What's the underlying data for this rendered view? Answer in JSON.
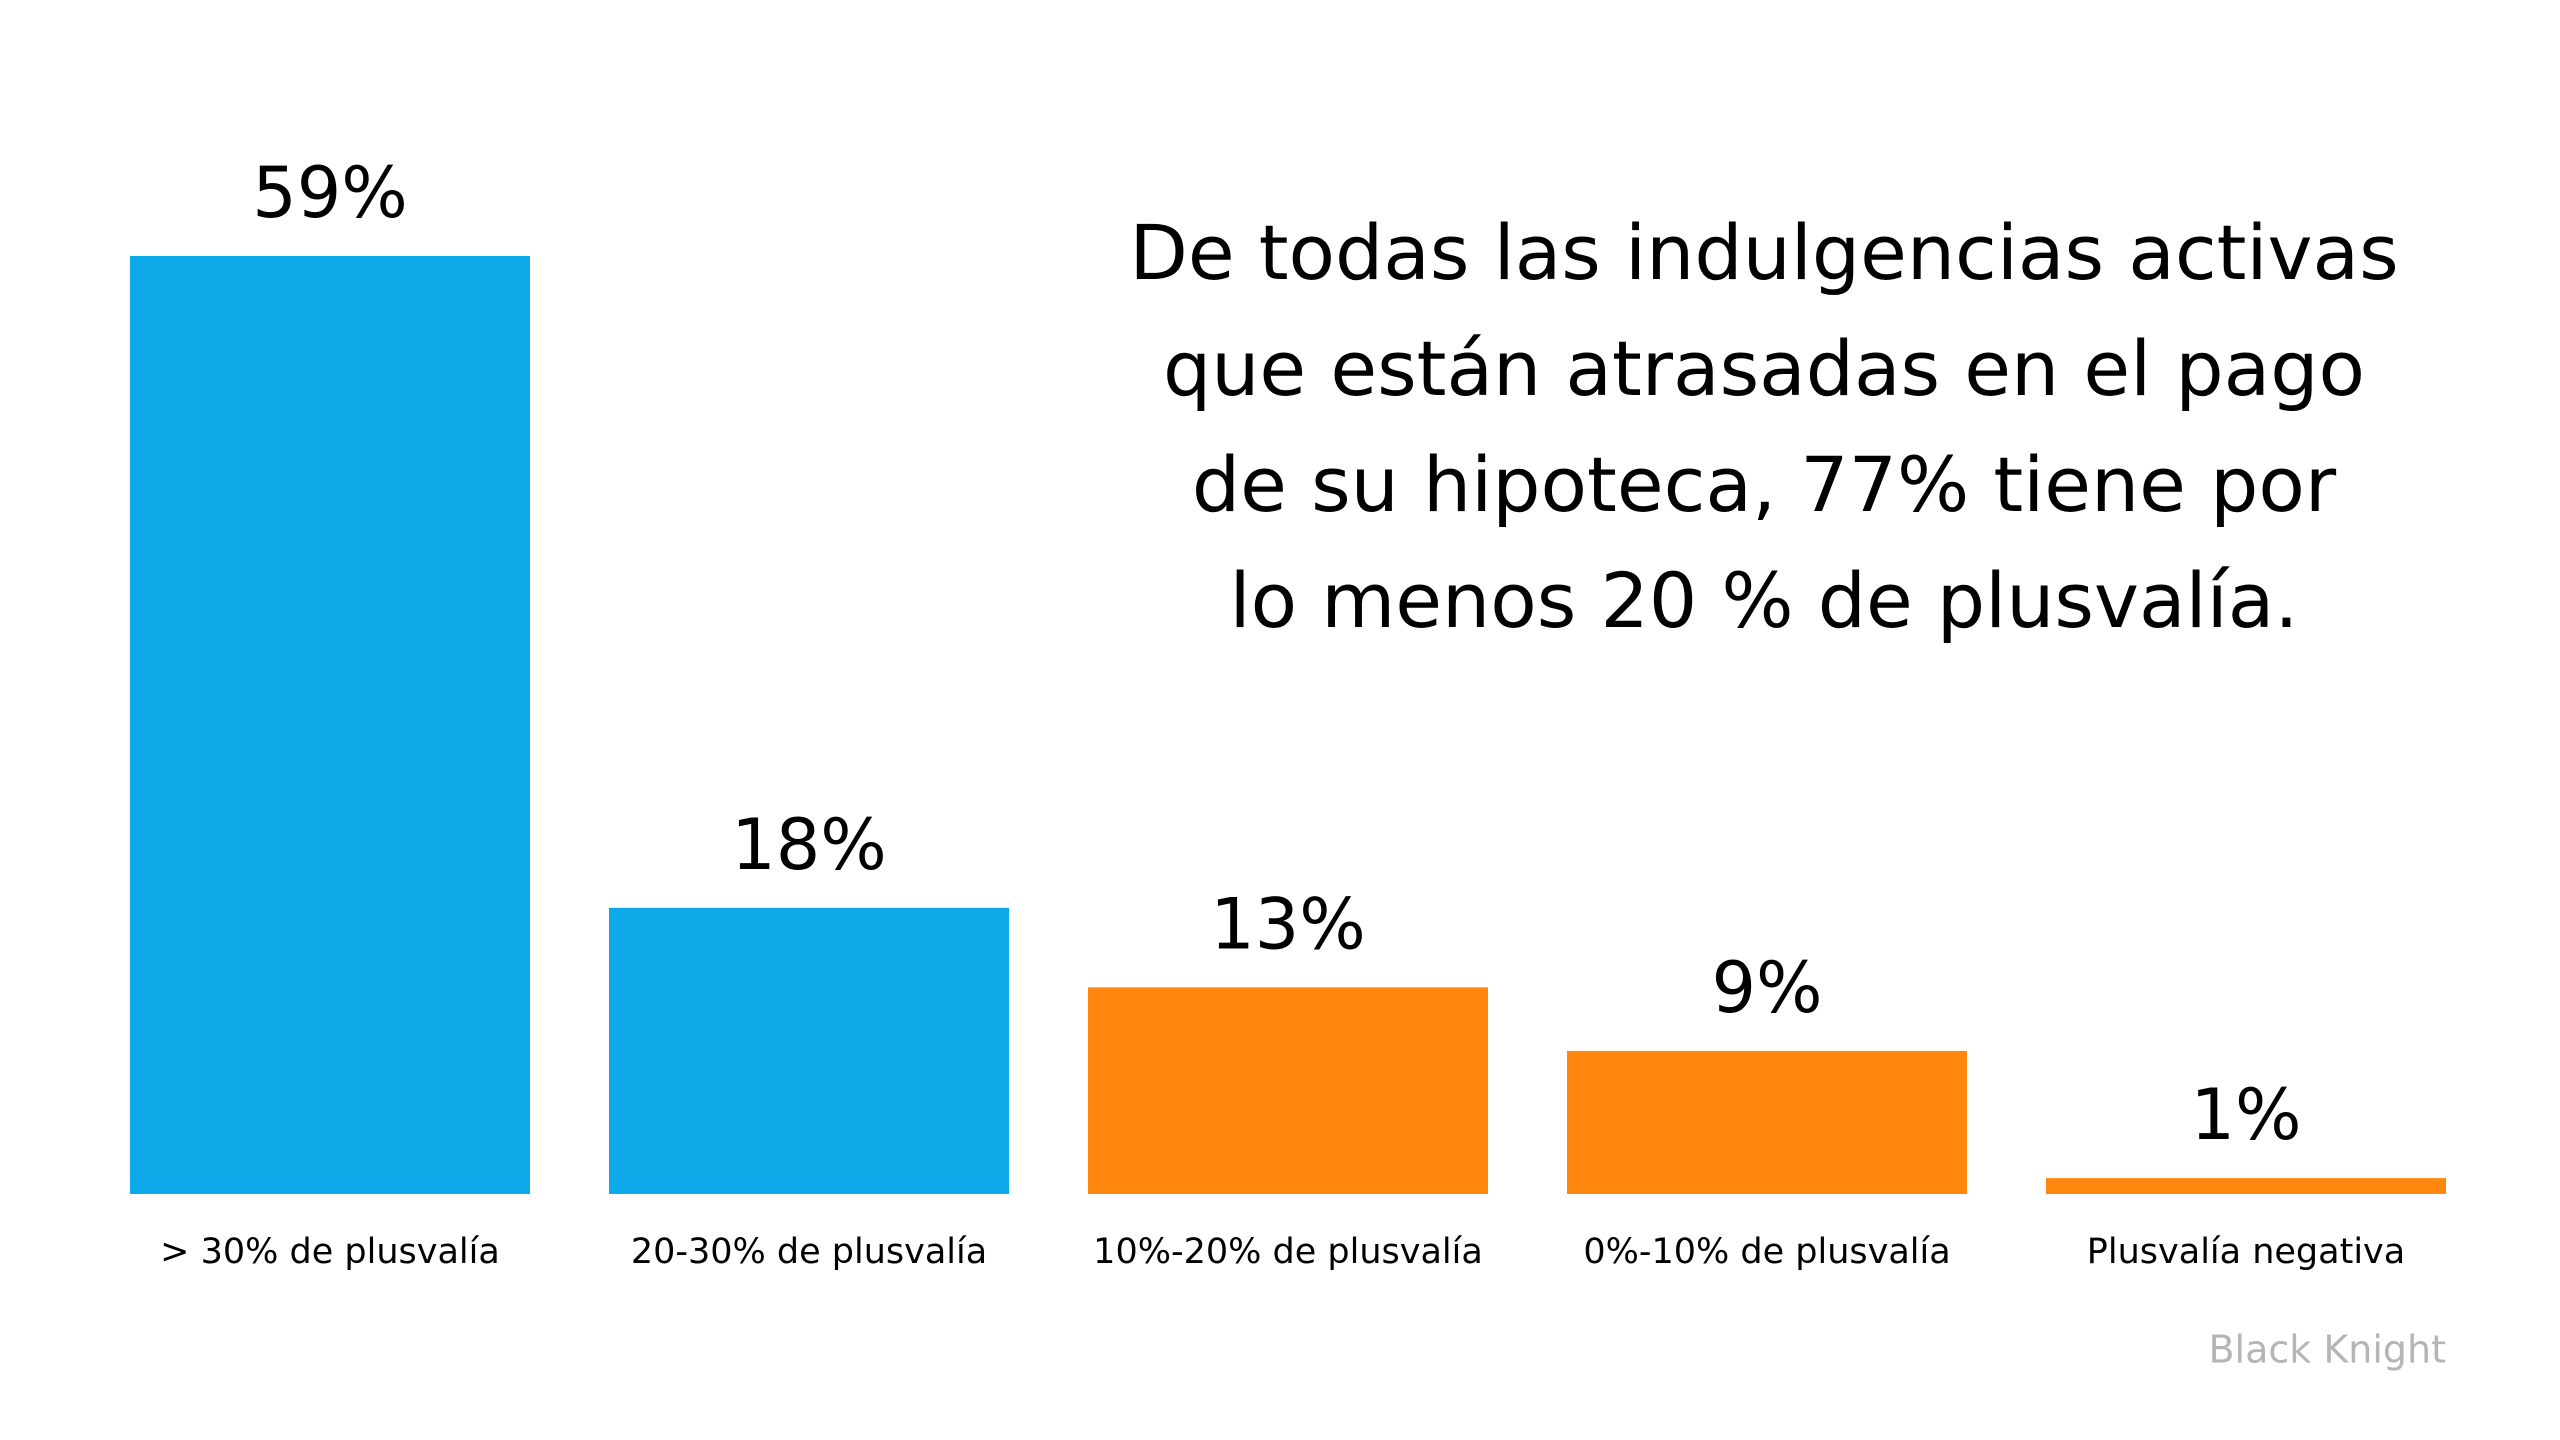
{
  "chart_data": {
    "type": "bar",
    "categories": [
      "> 30% de plusvalía",
      "20-30% de plusvalía",
      "10%-20% de plusvalía",
      "0%-10% de plusvalía",
      "Plusvalía negativa"
    ],
    "values": [
      59,
      18,
      13,
      9,
      1
    ],
    "value_labels": [
      "59%",
      "18%",
      "13%",
      "9%",
      "1%"
    ],
    "colors": [
      "#0da9e9",
      "#0da9e9",
      "#ff870f",
      "#ff870f",
      "#ff870f"
    ],
    "annotation": [
      "De todas las indulgencias activas",
      "que están atrasadas en el pago",
      "de su hipoteca, 77% tiene por",
      "lo menos 20 % de plusvalía."
    ],
    "source": "Black Knight"
  }
}
